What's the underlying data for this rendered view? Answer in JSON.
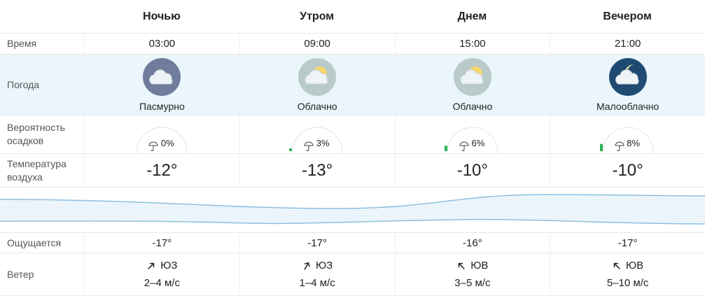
{
  "periods": [
    "Ночью",
    "Утром",
    "Днем",
    "Вечером"
  ],
  "rows": {
    "time": {
      "label": "Время",
      "values": [
        "03:00",
        "09:00",
        "15:00",
        "21:00"
      ]
    },
    "weather": {
      "label": "Погода",
      "values": [
        "Пасмурно",
        "Облачно",
        "Облачно",
        "Малооблачно"
      ]
    },
    "precip": {
      "label": "Вероятность осадков",
      "values": [
        {
          "value": 0,
          "label": "0%"
        },
        {
          "value": 3,
          "label": "3%"
        },
        {
          "value": 6,
          "label": "6%"
        },
        {
          "value": 8,
          "label": "8%"
        }
      ]
    },
    "temp": {
      "label": "Температура воздуха",
      "values": [
        "-12°",
        "-13°",
        "-10°",
        "-10°"
      ]
    },
    "feels": {
      "label": "Ощущается",
      "values": [
        "-17°",
        "-17°",
        "-16°",
        "-17°"
      ]
    },
    "wind": {
      "label": "Ветер",
      "direction": [
        "ЮЗ",
        "ЮЗ",
        "ЮВ",
        "ЮВ"
      ],
      "speed": [
        "2–4 м/с",
        "1–4 м/с",
        "3–5 м/с",
        "5–10 м/с"
      ]
    }
  }
}
